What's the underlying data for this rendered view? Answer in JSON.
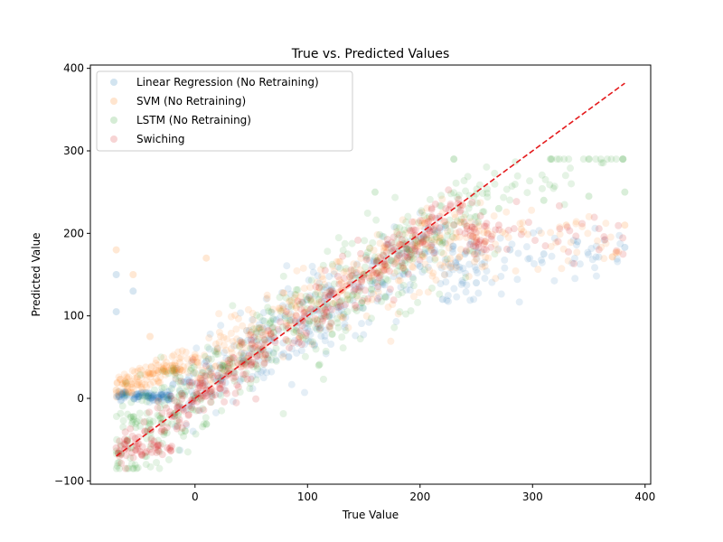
{
  "chart_data": {
    "type": "scatter",
    "title": "True vs. Predicted Values",
    "xlabel": "True Value",
    "ylabel": "Predicted Value",
    "xlim": [
      -93,
      405
    ],
    "ylim": [
      -104,
      404
    ],
    "xticks": [
      0,
      100,
      200,
      300,
      400
    ],
    "yticks": [
      -100,
      0,
      100,
      200,
      300,
      400
    ],
    "grid": false,
    "legend_position": "top-left",
    "reference_line": {
      "x": [
        -70,
        382
      ],
      "y": [
        -70,
        382
      ],
      "color": "#e41a1c",
      "style": "dashed"
    },
    "series": [
      {
        "name": "Linear Regression (No Retraining)",
        "color": "#1f77b4"
      },
      {
        "name": "SVM (No Retraining)",
        "color": "#ff7f0e"
      },
      {
        "name": "LSTM (No Retraining)",
        "color": "#2ca02c"
      },
      {
        "name": "Swiching",
        "color": "#d62728"
      }
    ],
    "representative_points": {
      "Linear Regression (No Retraining)": [
        [
          -65,
          5
        ],
        [
          -50,
          2
        ],
        [
          -30,
          5
        ],
        [
          -10,
          20
        ],
        [
          10,
          45
        ],
        [
          40,
          70
        ],
        [
          80,
          100
        ],
        [
          120,
          125
        ],
        [
          160,
          140
        ],
        [
          200,
          160
        ],
        [
          240,
          175
        ],
        [
          280,
          180
        ],
        [
          310,
          175
        ],
        [
          340,
          190
        ],
        [
          382,
          183
        ],
        [
          -70,
          150
        ],
        [
          -70,
          105
        ],
        [
          -55,
          130
        ],
        [
          220,
          120
        ],
        [
          250,
          140
        ]
      ],
      "SVM (No Retraining)": [
        [
          -70,
          10
        ],
        [
          -60,
          15
        ],
        [
          -40,
          30
        ],
        [
          -20,
          40
        ],
        [
          0,
          50
        ],
        [
          20,
          60
        ],
        [
          50,
          80
        ],
        [
          90,
          110
        ],
        [
          130,
          140
        ],
        [
          170,
          160
        ],
        [
          210,
          180
        ],
        [
          250,
          195
        ],
        [
          290,
          205
        ],
        [
          330,
          210
        ],
        [
          382,
          210
        ],
        [
          -55,
          150
        ],
        [
          -70,
          180
        ],
        [
          10,
          170
        ],
        [
          -40,
          75
        ]
      ],
      "LSTM (No Retraining)": [
        [
          -60,
          -50
        ],
        [
          -30,
          -30
        ],
        [
          0,
          0
        ],
        [
          30,
          30
        ],
        [
          70,
          80
        ],
        [
          110,
          120
        ],
        [
          150,
          150
        ],
        [
          190,
          180
        ],
        [
          230,
          210
        ],
        [
          270,
          230
        ],
        [
          310,
          240
        ],
        [
          350,
          245
        ],
        [
          382,
          250
        ],
        [
          160,
          250
        ],
        [
          110,
          40
        ]
      ],
      "Swiching": [
        [
          -70,
          -60
        ],
        [
          -50,
          -55
        ],
        [
          -30,
          -40
        ],
        [
          -10,
          -15
        ],
        [
          10,
          10
        ],
        [
          30,
          30
        ],
        [
          60,
          60
        ],
        [
          90,
          100
        ],
        [
          120,
          130
        ],
        [
          150,
          150
        ],
        [
          180,
          170
        ],
        [
          210,
          185
        ],
        [
          240,
          200
        ],
        [
          270,
          210
        ]
      ]
    }
  }
}
